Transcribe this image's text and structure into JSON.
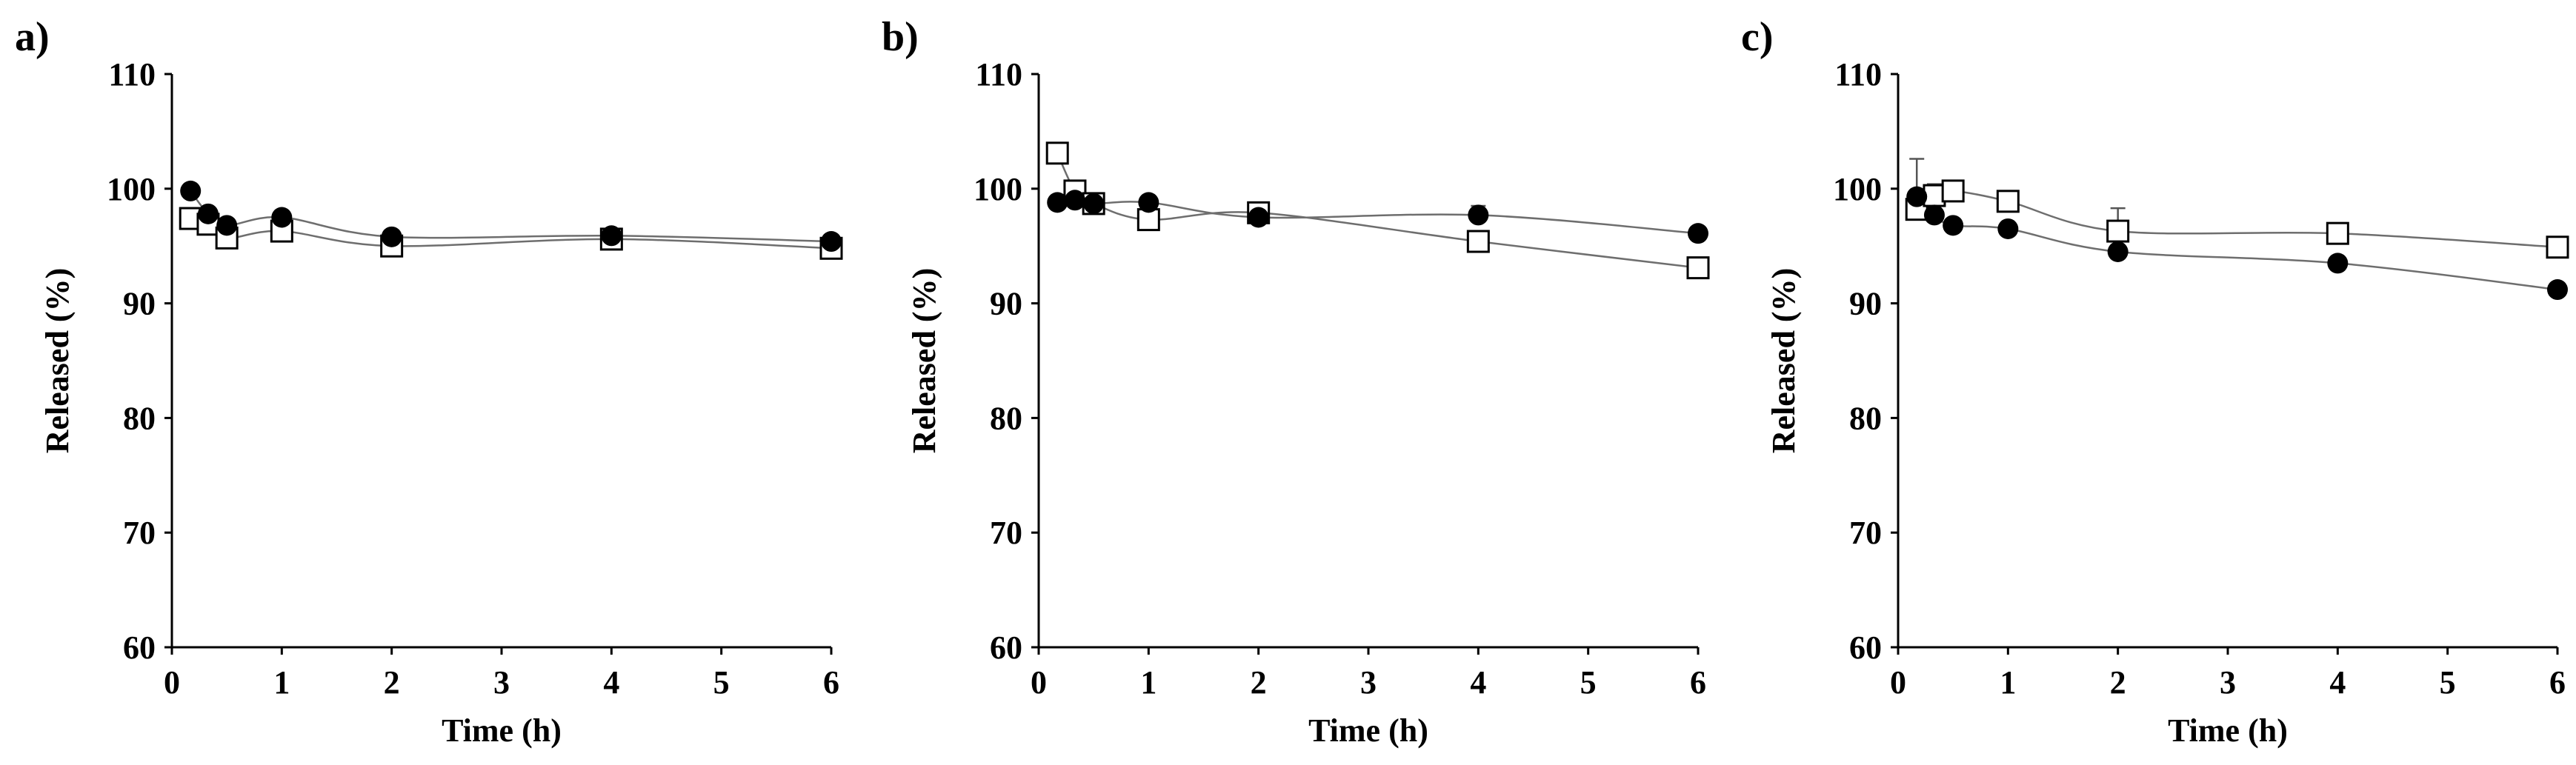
{
  "chart_data": [
    {
      "type": "scatter",
      "panel_label": "a)",
      "title": "",
      "xlabel": "Time (h)",
      "ylabel": "Released (%)",
      "xlim": [
        0,
        6
      ],
      "ylim": [
        60,
        110
      ],
      "xticks": [
        "0",
        "1",
        "2",
        "3",
        "4",
        "5",
        "6"
      ],
      "yticks": [
        "60",
        "70",
        "80",
        "90",
        "100",
        "110"
      ],
      "grid": false,
      "series": [
        {
          "name": "filled circles",
          "marker": "circle",
          "x": [
            0.17,
            0.33,
            0.5,
            1,
            2,
            4,
            6
          ],
          "values": [
            99.8,
            97.8,
            96.8,
            97.5,
            95.8,
            95.9,
            95.4
          ],
          "err": [
            0,
            0,
            0,
            0,
            0,
            0,
            0
          ]
        },
        {
          "name": "open squares",
          "marker": "square",
          "x": [
            0.17,
            0.33,
            0.5,
            1,
            2,
            4,
            6
          ],
          "values": [
            97.4,
            96.9,
            95.7,
            96.3,
            95.0,
            95.6,
            94.8
          ],
          "err": [
            0,
            0,
            0,
            0,
            0,
            0,
            0
          ]
        }
      ]
    },
    {
      "type": "scatter",
      "panel_label": "b)",
      "title": "",
      "xlabel": "Time (h)",
      "ylabel": "Released (%)",
      "xlim": [
        0,
        6
      ],
      "ylim": [
        60,
        110
      ],
      "xticks": [
        "0",
        "1",
        "2",
        "3",
        "4",
        "5",
        "6"
      ],
      "yticks": [
        "60",
        "70",
        "80",
        "90",
        "100",
        "110"
      ],
      "grid": false,
      "series": [
        {
          "name": "filled circles",
          "marker": "circle",
          "x": [
            0.17,
            0.33,
            0.5,
            1,
            2,
            4,
            6
          ],
          "values": [
            98.8,
            99.0,
            98.7,
            98.8,
            97.5,
            97.7,
            96.1
          ],
          "err": [
            0,
            0,
            0,
            0,
            0,
            0.8,
            0
          ]
        },
        {
          "name": "open squares",
          "marker": "square",
          "x": [
            0.17,
            0.33,
            0.5,
            1,
            2,
            4,
            6
          ],
          "values": [
            103.1,
            99.8,
            98.7,
            97.3,
            97.9,
            95.4,
            93.1
          ],
          "err": [
            0,
            0,
            0,
            0,
            0,
            0,
            0
          ]
        }
      ]
    },
    {
      "type": "scatter",
      "panel_label": "c)",
      "title": "",
      "xlabel": "Time (h)",
      "ylabel": "Released (%)",
      "xlim": [
        0,
        6
      ],
      "ylim": [
        60,
        110
      ],
      "xticks": [
        "0",
        "1",
        "2",
        "3",
        "4",
        "5",
        "6"
      ],
      "yticks": [
        "60",
        "70",
        "80",
        "90",
        "100",
        "110"
      ],
      "grid": false,
      "series": [
        {
          "name": "filled circles",
          "marker": "circle",
          "x": [
            0.17,
            0.33,
            0.5,
            1,
            2,
            4,
            6
          ],
          "values": [
            99.3,
            97.7,
            96.8,
            96.5,
            94.5,
            93.5,
            91.2
          ],
          "err": [
            0,
            0,
            0,
            0,
            0,
            0,
            0
          ]
        },
        {
          "name": "open squares",
          "marker": "square",
          "x": [
            0.17,
            0.33,
            0.5,
            1,
            2,
            4,
            6
          ],
          "values": [
            98.2,
            99.4,
            99.8,
            98.9,
            96.3,
            96.1,
            94.9
          ],
          "err": [
            4.4,
            1.0,
            0,
            0,
            2.0,
            0,
            0
          ]
        }
      ]
    }
  ]
}
